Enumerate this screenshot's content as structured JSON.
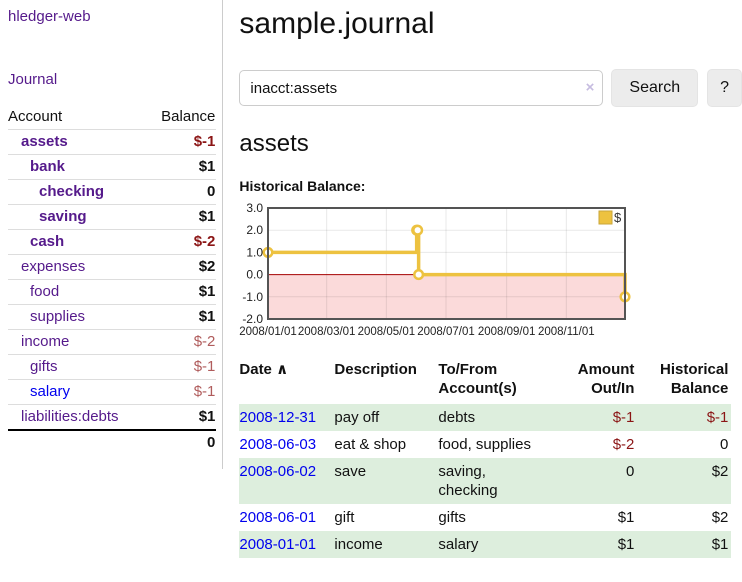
{
  "sidebar": {
    "brand": "hledger-web",
    "journal_link": "Journal",
    "table": {
      "account_header": "Account",
      "balance_header": "Balance",
      "rows": [
        {
          "name": "assets",
          "balance": "$-1",
          "level": 1,
          "bold": true,
          "negative": "strong"
        },
        {
          "name": "bank",
          "balance": "$1",
          "level": 2,
          "bold": true
        },
        {
          "name": "checking",
          "balance": "0",
          "level": 3,
          "bold": true
        },
        {
          "name": "saving",
          "balance": "$1",
          "level": 3,
          "bold": true
        },
        {
          "name": "cash",
          "balance": "$-2",
          "level": 2,
          "bold": true,
          "negative": "strong"
        },
        {
          "name": "expenses",
          "balance": "$2",
          "level": 1
        },
        {
          "name": "food",
          "balance": "$1",
          "level": 2
        },
        {
          "name": "supplies",
          "balance": "$1",
          "level": 2
        },
        {
          "name": "income",
          "balance": "$-2",
          "level": 1,
          "negative": "soft"
        },
        {
          "name": "gifts",
          "balance": "$-1",
          "level": 2,
          "negative": "soft"
        },
        {
          "name": "salary",
          "balance": "$-1",
          "level": 2,
          "negative": "soft",
          "link_color": "blue"
        },
        {
          "name": "liabilities:debts",
          "balance": "$1",
          "level": 1
        }
      ],
      "total": "0"
    }
  },
  "main": {
    "title": "sample.journal",
    "search": {
      "value": "inacct:assets",
      "clear_icon": "×",
      "search_button": "Search",
      "help_button": "?"
    },
    "account_heading": "assets",
    "chart_label": "Historical Balance:"
  },
  "chart_data": {
    "type": "line",
    "subtype": "step",
    "title": "Historical Balance",
    "series": [
      {
        "name": "$",
        "color": "#EDC240",
        "points": [
          [
            "2008-01-01",
            1
          ],
          [
            "2008-06-01",
            2
          ],
          [
            "2008-06-02",
            2
          ],
          [
            "2008-06-03",
            0
          ],
          [
            "2008-12-31",
            -1
          ]
        ]
      }
    ],
    "x_ticks": [
      {
        "label": "2008/01/01",
        "date": "2008-01-01"
      },
      {
        "label": "2008/03/01",
        "date": "2008-03-01"
      },
      {
        "label": "2008/05/01",
        "date": "2008-05-01"
      },
      {
        "label": "2008/07/01",
        "date": "2008-07-01"
      },
      {
        "label": "2008/09/01",
        "date": "2008-09-01"
      },
      {
        "label": "2008/11/01",
        "date": "2008-11-01"
      }
    ],
    "y_ticks": [
      {
        "label": "3.0",
        "value": 3
      },
      {
        "label": "2.0",
        "value": 2
      },
      {
        "label": "1.0",
        "value": 1
      },
      {
        "label": "0.0",
        "value": 0
      },
      {
        "label": "-1.0",
        "value": -1
      },
      {
        "label": "-2.0",
        "value": -2
      }
    ],
    "ylim": [
      -2,
      3
    ],
    "xlim": [
      "2008-01-01",
      "2008-12-31"
    ],
    "legend": {
      "label": "$",
      "color": "#EDC240",
      "position": "top-right"
    },
    "grid": true,
    "negative_region_fill": "#fbdada",
    "zero_line_color": "#a40000",
    "border_color": "#545454"
  },
  "register": {
    "headers": {
      "date": "Date",
      "sort_icon": "∧",
      "description": "Description",
      "tofrom": "To/From Account(s)",
      "amount": "Amount Out/In",
      "histbal": "Historical Balance"
    },
    "rows": [
      {
        "date": "2008-12-31",
        "description": "pay off",
        "tofrom": "debts",
        "amount": "$-1",
        "amount_negative": true,
        "histbal": "$-1",
        "histbal_negative": true
      },
      {
        "date": "2008-06-03",
        "description": "eat & shop",
        "tofrom": "food, supplies",
        "amount": "$-2",
        "amount_negative": true,
        "histbal": "0",
        "histbal_negative": false
      },
      {
        "date": "2008-06-02",
        "description": "save",
        "tofrom": "saving, checking",
        "amount": "0",
        "amount_negative": false,
        "histbal": "$2",
        "histbal_negative": false
      },
      {
        "date": "2008-06-01",
        "description": "gift",
        "tofrom": "gifts",
        "amount": "$1",
        "amount_negative": false,
        "histbal": "$2",
        "histbal_negative": false
      },
      {
        "date": "2008-01-01",
        "description": "income",
        "tofrom": "salary",
        "amount": "$1",
        "amount_negative": false,
        "histbal": "$1",
        "histbal_negative": false
      }
    ]
  },
  "colors": {
    "link_visited_purple": "#551a8b",
    "link_blue": "#0000ee",
    "negative_strong": "#8b1515",
    "negative_soft": "#b05c5c",
    "row_stripe_green": "#ddeedd",
    "series_gold": "#EDC240",
    "negative_region_pink": "#fbdada",
    "zero_line_red": "#a40000"
  }
}
